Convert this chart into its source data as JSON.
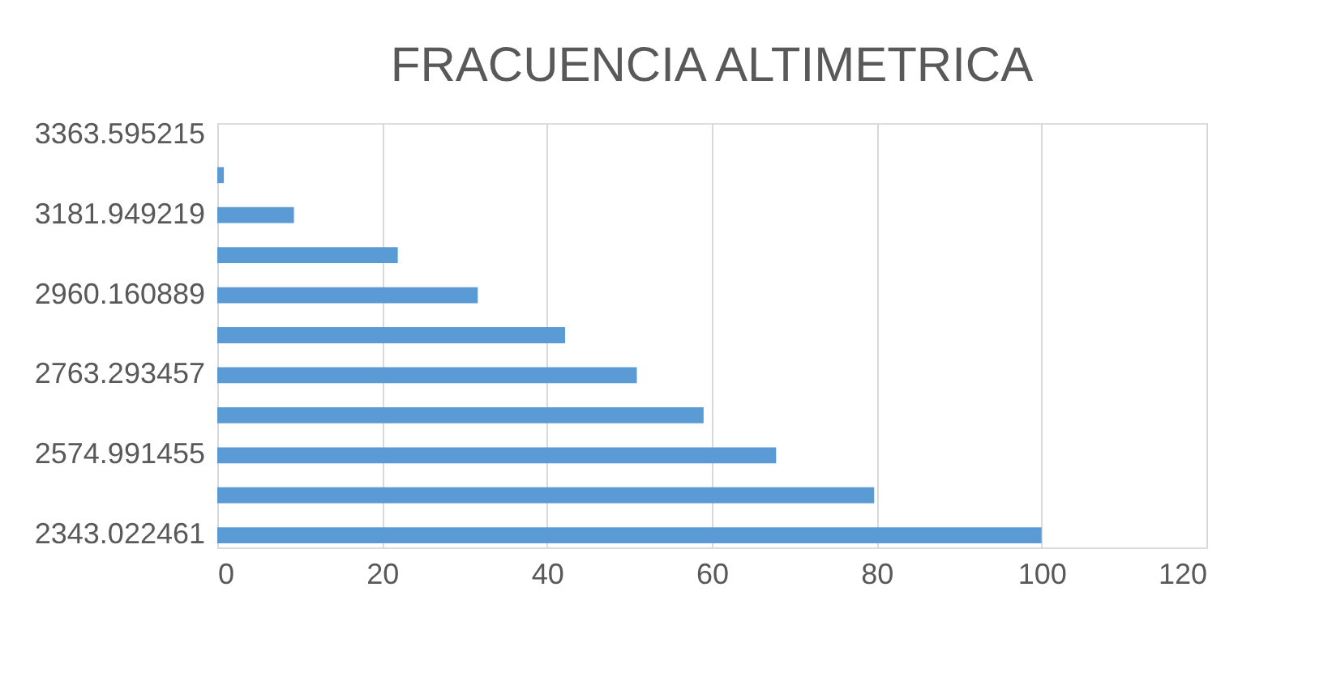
{
  "chart_data": {
    "type": "bar",
    "orientation": "horizontal",
    "title": "FRACUENCIA ALTIMETRICA",
    "categories": [
      "3363.595215",
      null,
      "3181.949219",
      null,
      "2960.160889",
      null,
      "2763.293457",
      null,
      "2574.991455",
      null,
      "2343.022461"
    ],
    "values": [
      0,
      0.8,
      9.3,
      21.9,
      31.6,
      42.2,
      50.9,
      59,
      67.8,
      79.7,
      100
    ],
    "color": "#5b9bd5",
    "xlim": [
      0,
      120
    ],
    "xticks": [
      0,
      20,
      40,
      60,
      80,
      100,
      120
    ],
    "grid": "x"
  }
}
